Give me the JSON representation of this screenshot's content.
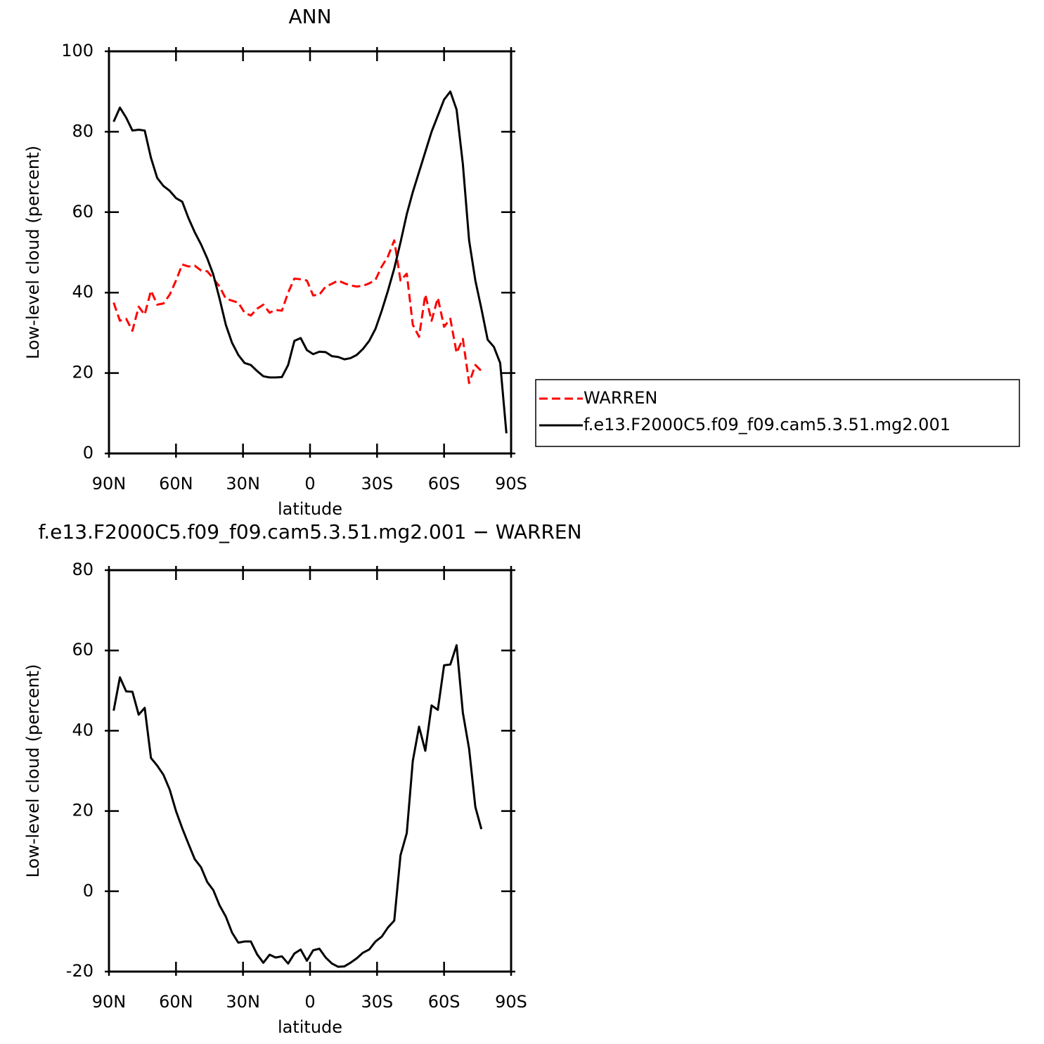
{
  "chart_data": [
    {
      "type": "line",
      "title": "ANN",
      "xlabel": "latitude",
      "ylabel": "Low-level cloud (percent)",
      "x": [
        87.9,
        85.1,
        82.3,
        79.5,
        76.7,
        74.0,
        71.2,
        68.4,
        65.6,
        62.8,
        60.0,
        57.2,
        54.4,
        51.6,
        48.8,
        46.0,
        43.3,
        40.5,
        37.7,
        34.9,
        32.1,
        29.3,
        26.5,
        23.7,
        20.9,
        18.1,
        15.4,
        12.6,
        9.8,
        7.0,
        4.2,
        1.4,
        -1.4,
        -4.2,
        -7.0,
        -9.8,
        -12.6,
        -15.4,
        -18.1,
        -20.9,
        -23.7,
        -26.5,
        -29.3,
        -32.1,
        -34.9,
        -37.7,
        -40.5,
        -43.3,
        -46.0,
        -48.8,
        -51.6,
        -54.4,
        -57.2,
        -60.0,
        -62.8,
        -65.6,
        -68.4,
        -71.2,
        -74.0,
        -76.7,
        -79.5,
        -82.3,
        -85.1,
        -87.9
      ],
      "xlim": [
        90,
        -90
      ],
      "xticks": [
        {
          "value": 90,
          "label": "90N"
        },
        {
          "value": 60,
          "label": "60N"
        },
        {
          "value": 30,
          "label": "30N"
        },
        0,
        {
          "value": -30,
          "label": "30S"
        },
        {
          "value": -60,
          "label": "60S"
        },
        {
          "value": -90,
          "label": "90S"
        }
      ],
      "ylim": [
        0,
        100
      ],
      "yticks": [
        0,
        20,
        40,
        60,
        80,
        100
      ],
      "legend": "right",
      "series": [
        {
          "name": "WARREN",
          "color": "#ff0000",
          "dashed": true,
          "values": [
            37.5,
            33,
            33.5,
            30.5,
            36.5,
            34.5,
            40.5,
            37,
            37.3,
            39.5,
            43,
            47,
            46.5,
            46.7,
            45.5,
            45.3,
            43.5,
            41.5,
            38.5,
            38,
            37.5,
            35,
            34.3,
            36,
            37,
            35,
            35.7,
            35.5,
            40,
            43.5,
            43.3,
            43,
            39.3,
            39.5,
            41.5,
            42.2,
            43,
            42.3,
            41.8,
            41.5,
            41.7,
            42.3,
            43.2,
            46.5,
            49,
            53,
            43,
            44.7,
            32,
            29,
            39.5,
            33,
            38.7,
            31.5,
            33.5,
            25,
            28.5,
            17.5,
            22,
            20.5,
            null,
            null,
            null,
            null
          ]
        },
        {
          "name": "f.e13.F2000C5.f09_f09.cam5.3.51.mg2.001",
          "color": "#000000",
          "dashed": false,
          "values": [
            82.5,
            86,
            83.5,
            80.3,
            80.5,
            80.3,
            73.5,
            68.5,
            66.5,
            65.3,
            63.5,
            62.6,
            58.5,
            55,
            52,
            48.5,
            44.5,
            38.5,
            32,
            27.5,
            24.5,
            22.5,
            22,
            20.5,
            19.2,
            18.9,
            18.9,
            19,
            22,
            28,
            28.7,
            25.7,
            24.7,
            25.3,
            25.2,
            24.2,
            24,
            23.4,
            23.7,
            24.5,
            26,
            28,
            31,
            35.5,
            40.5,
            46,
            52.5,
            59.5,
            65,
            70,
            75,
            80,
            84,
            88,
            90,
            85.5,
            72,
            53,
            43,
            36,
            28.3,
            26.5,
            22.5,
            5
          ]
        }
      ]
    },
    {
      "type": "line",
      "title": "f.e13.F2000C5.f09_f09.cam5.3.51.mg2.001 − WARREN",
      "xlabel": "latitude",
      "ylabel": "Low-level cloud (percent)",
      "x": [
        87.9,
        85.1,
        82.3,
        79.5,
        76.7,
        74.0,
        71.2,
        68.4,
        65.6,
        62.8,
        60.0,
        57.2,
        54.4,
        51.6,
        48.8,
        46.0,
        43.3,
        40.5,
        37.7,
        34.9,
        32.1,
        29.3,
        26.5,
        23.7,
        20.9,
        18.1,
        15.4,
        12.6,
        9.8,
        7.0,
        4.2,
        1.4,
        -1.4,
        -4.2,
        -7.0,
        -9.8,
        -12.6,
        -15.4,
        -18.1,
        -20.9,
        -23.7,
        -26.5,
        -29.3,
        -32.1,
        -34.9,
        -37.7,
        -40.5,
        -43.3,
        -46.0,
        -48.8,
        -51.6,
        -54.4,
        -57.2,
        -60.0,
        -62.8,
        -65.6,
        -68.4,
        -71.2,
        -74.0,
        -76.7,
        -79.5,
        -82.3,
        -85.1,
        -87.9
      ],
      "xlim": [
        90,
        -90
      ],
      "xticks": [
        {
          "value": 90,
          "label": "90N"
        },
        {
          "value": 60,
          "label": "60N"
        },
        {
          "value": 30,
          "label": "30N"
        },
        0,
        {
          "value": -30,
          "label": "30S"
        },
        {
          "value": -60,
          "label": "60S"
        },
        {
          "value": -90,
          "label": "90S"
        }
      ],
      "ylim": [
        -20,
        80
      ],
      "yticks": [
        -20,
        0,
        20,
        40,
        60,
        80
      ],
      "series": [
        {
          "color": "#000000",
          "dashed": false,
          "values": [
            45,
            53.3,
            49.8,
            49.7,
            44,
            45.7,
            33.2,
            31.3,
            29,
            25.3,
            20,
            15.7,
            11.8,
            8,
            6,
            2.3,
            0.3,
            -3.5,
            -6.3,
            -10.3,
            -12.8,
            -12.5,
            -12.5,
            -15.7,
            -17.8,
            -15.8,
            -16.5,
            -16.2,
            -18,
            -15.5,
            -14.5,
            -17.3,
            -14.7,
            -14.3,
            -16.5,
            -18,
            -18.8,
            -18.7,
            -17.8,
            -16.7,
            -15.3,
            -14.5,
            -12.5,
            -11.3,
            -9,
            -7.3,
            9,
            14.5,
            32.5,
            41,
            35,
            46.3,
            45.2,
            56.3,
            56.5,
            61.3,
            44.5,
            35.5,
            21,
            15.5,
            null,
            null,
            null,
            null
          ]
        }
      ]
    }
  ]
}
